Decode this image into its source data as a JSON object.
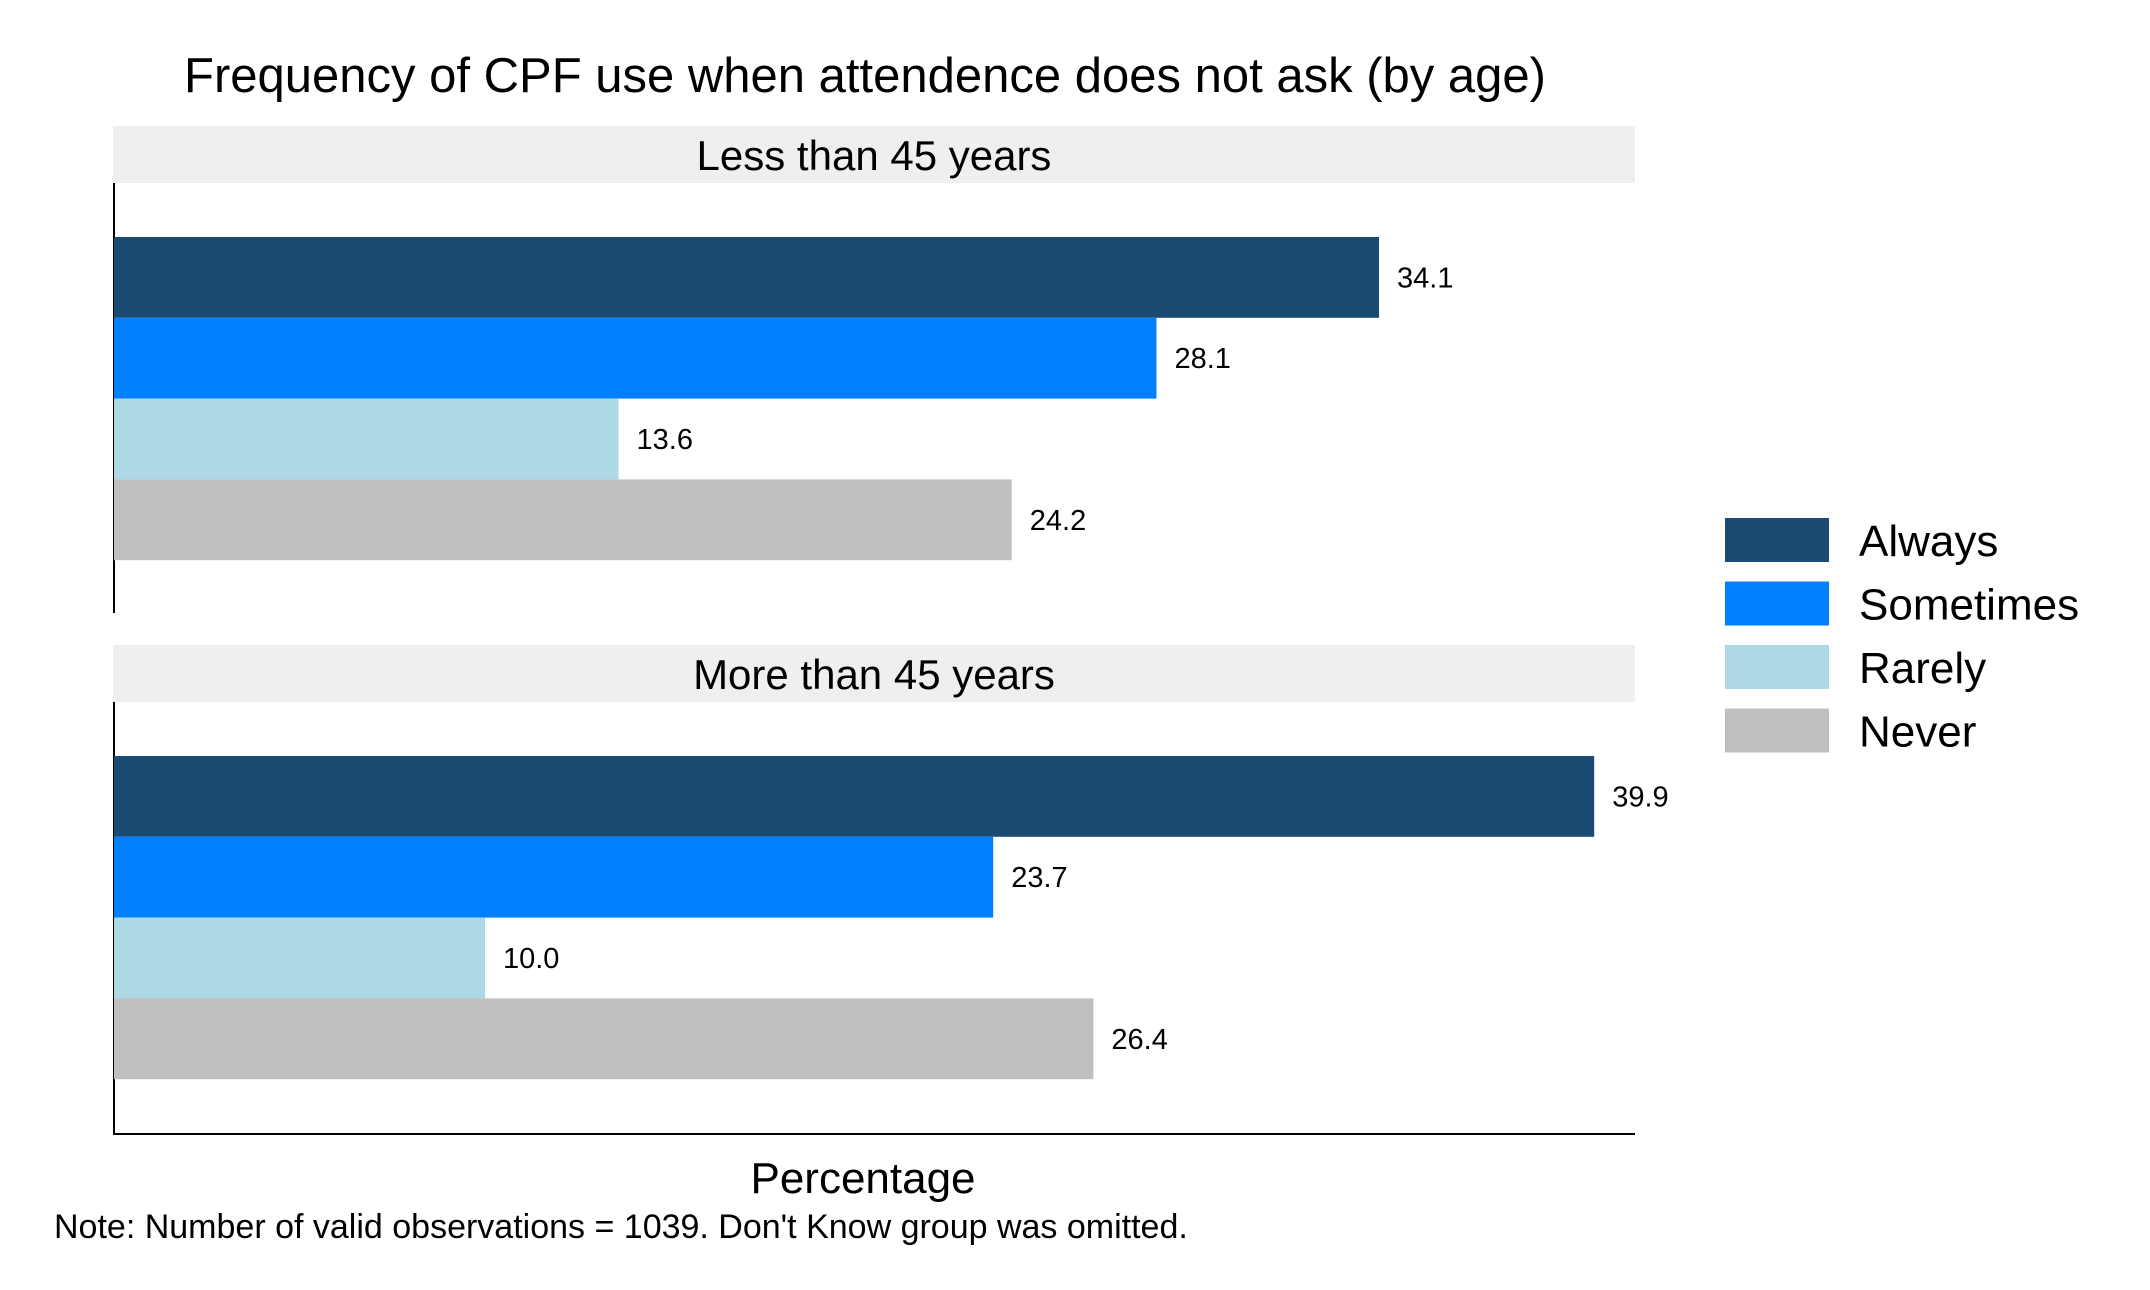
{
  "chart_data": {
    "type": "bar",
    "orientation": "horizontal",
    "title": "Frequency of CPF use when attendence does not ask (by age)",
    "xlabel": "Percentage",
    "ylabel": "",
    "note": "Note: Number of valid observations = 1039. Don't Know group was omitted.",
    "xlim": [
      0,
      41
    ],
    "grid": false,
    "legend_position": "right",
    "series": [
      {
        "name": "Always",
        "color": "#1b4a72"
      },
      {
        "name": "Sometimes",
        "color": "#0080ff"
      },
      {
        "name": "Rarely",
        "color": "#add8e6"
      },
      {
        "name": "Never",
        "color": "#bfbfbf"
      }
    ],
    "panels": [
      {
        "label": "Less than 45 years",
        "values": [
          34.1,
          28.1,
          13.6,
          24.2
        ],
        "value_labels": [
          "34.1",
          "28.1",
          "13.6",
          "24.2"
        ]
      },
      {
        "label": "More than 45 years",
        "values": [
          39.9,
          23.7,
          10.0,
          26.4
        ],
        "value_labels": [
          "39.9",
          "23.7",
          "10.0",
          "26.4"
        ]
      }
    ]
  }
}
